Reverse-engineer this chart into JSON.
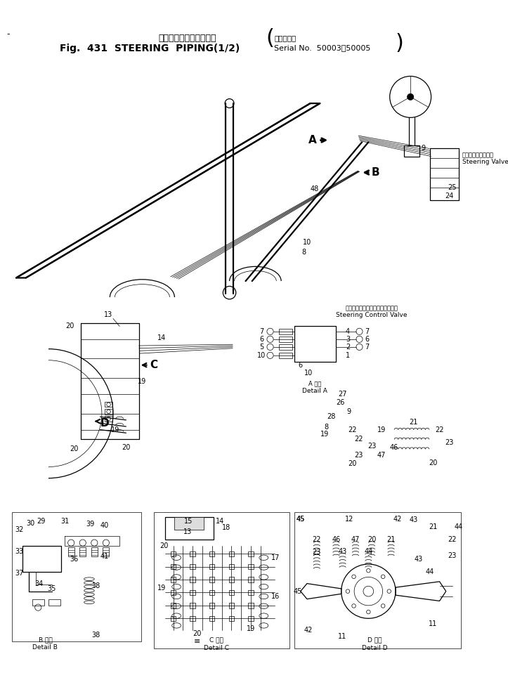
{
  "title_jp": "ステアリングパイピング",
  "title_en": "Fig.  431  STEERING  PIPING(1/2)",
  "serial_label_jp": "適用号機＾",
  "serial_label_en": "Serial No.  50003～50005",
  "bg_color": "#ffffff",
  "fig_width": 7.23,
  "fig_height": 9.85,
  "dpi": 100,
  "lc": "#000000",
  "lw_thin": 0.5,
  "lw_med": 0.9,
  "lw_thick": 1.6,
  "steering_valve_jp": "ステアリングバルブ",
  "steering_valve_en": "Steering Valve",
  "control_valve_jp": "ステアリングコントロールバルプ",
  "control_valve_en": "Steering Control Valve",
  "detail_b_jp": "B 詳細",
  "detail_b_en": "Detail B",
  "detail_c_jp": "C 詳細",
  "detail_c_en": "Detail C",
  "detail_d_jp": "D 詳細",
  "detail_d_en": "Detail D",
  "detail_a_jp": "A 詳細",
  "detail_a_en": "Detail A"
}
